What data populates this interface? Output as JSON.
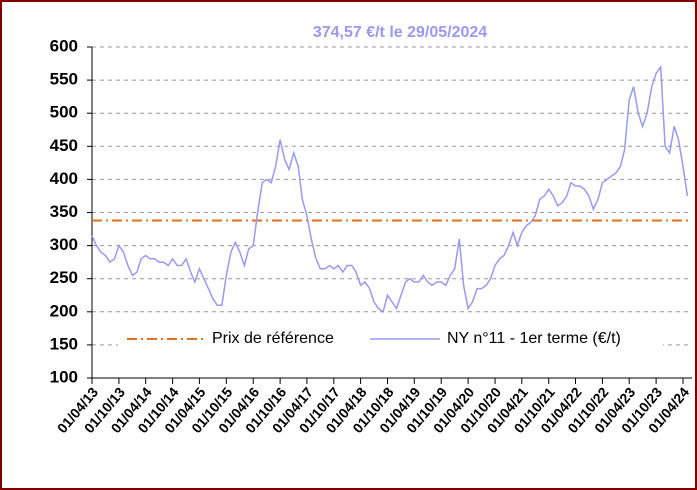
{
  "chart_data": {
    "type": "line",
    "annotation": "374,57 €/t le 29/05/2024",
    "x": [
      "01/04/13",
      "01/05/13",
      "01/06/13",
      "01/07/13",
      "01/08/13",
      "01/09/13",
      "01/10/13",
      "01/11/13",
      "01/12/13",
      "01/01/14",
      "01/02/14",
      "01/03/14",
      "01/04/14",
      "01/05/14",
      "01/06/14",
      "01/07/14",
      "01/08/14",
      "01/09/14",
      "01/10/14",
      "01/11/14",
      "01/12/14",
      "01/01/15",
      "01/02/15",
      "01/03/15",
      "01/04/15",
      "01/05/15",
      "01/06/15",
      "01/07/15",
      "01/08/15",
      "01/09/15",
      "01/10/15",
      "01/11/15",
      "01/12/15",
      "01/01/16",
      "01/02/16",
      "01/03/16",
      "01/04/16",
      "01/05/16",
      "01/06/16",
      "01/07/16",
      "01/08/16",
      "01/09/16",
      "01/10/16",
      "01/11/16",
      "01/12/16",
      "01/01/17",
      "01/02/17",
      "01/03/17",
      "01/04/17",
      "01/05/17",
      "01/06/17",
      "01/07/17",
      "01/08/17",
      "01/09/17",
      "01/10/17",
      "01/11/17",
      "01/12/17",
      "01/01/18",
      "01/02/18",
      "01/03/18",
      "01/04/18",
      "01/05/18",
      "01/06/18",
      "01/07/18",
      "01/08/18",
      "01/09/18",
      "01/10/18",
      "01/11/18",
      "01/12/18",
      "01/01/19",
      "01/02/19",
      "01/03/19",
      "01/04/19",
      "01/05/19",
      "01/06/19",
      "01/07/19",
      "01/08/19",
      "01/09/19",
      "01/10/19",
      "01/11/19",
      "01/12/19",
      "01/01/20",
      "01/02/20",
      "01/03/20",
      "01/04/20",
      "01/05/20",
      "01/06/20",
      "01/07/20",
      "01/08/20",
      "01/09/20",
      "01/10/20",
      "01/11/20",
      "01/12/20",
      "01/01/21",
      "01/02/21",
      "01/03/21",
      "01/04/21",
      "01/05/21",
      "01/06/21",
      "01/07/21",
      "01/08/21",
      "01/09/21",
      "01/10/21",
      "01/11/21",
      "01/12/21",
      "01/01/22",
      "01/02/22",
      "01/03/22",
      "01/04/22",
      "01/05/22",
      "01/06/22",
      "01/07/22",
      "01/08/22",
      "01/09/22",
      "01/10/22",
      "01/11/22",
      "01/12/22",
      "01/01/23",
      "01/02/23",
      "01/03/23",
      "01/04/23",
      "01/05/23",
      "01/06/23",
      "01/07/23",
      "01/08/23",
      "01/09/23",
      "01/10/23",
      "01/11/23",
      "01/12/23",
      "01/01/24",
      "01/02/24",
      "01/03/24",
      "01/04/24",
      "01/05/24"
    ],
    "series": [
      {
        "name": "NY n°11 - 1er terme (€/t)",
        "color": "#9999ee",
        "values": [
          315,
          300,
          290,
          285,
          275,
          280,
          300,
          290,
          270,
          255,
          260,
          280,
          285,
          280,
          280,
          275,
          275,
          270,
          280,
          270,
          270,
          280,
          260,
          245,
          265,
          250,
          235,
          220,
          210,
          210,
          255,
          290,
          305,
          290,
          270,
          295,
          300,
          350,
          395,
          400,
          395,
          420,
          460,
          430,
          415,
          440,
          420,
          370,
          345,
          310,
          280,
          265,
          265,
          270,
          265,
          270,
          260,
          270,
          270,
          260,
          240,
          245,
          235,
          215,
          205,
          200,
          225,
          215,
          205,
          225,
          245,
          250,
          245,
          245,
          255,
          245,
          240,
          245,
          245,
          240,
          255,
          265,
          310,
          240,
          205,
          215,
          235,
          235,
          240,
          250,
          270,
          280,
          285,
          300,
          320,
          300,
          320,
          330,
          335,
          345,
          370,
          375,
          385,
          375,
          360,
          365,
          375,
          395,
          390,
          390,
          385,
          375,
          355,
          370,
          395,
          400,
          405,
          410,
          420,
          445,
          520,
          540,
          500,
          480,
          500,
          540,
          560,
          570,
          450,
          440,
          480,
          460,
          420,
          375
        ]
      }
    ],
    "reference": {
      "name": "Prix de référence",
      "value": 338,
      "color": "#e07020"
    },
    "xlim": [
      "01/04/13",
      "01/06/24"
    ],
    "xticks": [
      "01/04/13",
      "01/10/13",
      "01/04/14",
      "01/10/14",
      "01/04/15",
      "01/10/15",
      "01/04/16",
      "01/10/16",
      "01/04/17",
      "01/10/17",
      "01/04/18",
      "01/10/18",
      "01/04/19",
      "01/10/19",
      "01/04/20",
      "01/10/20",
      "01/04/21",
      "01/10/21",
      "01/04/22",
      "01/10/22",
      "01/04/23",
      "01/10/23",
      "01/04/24"
    ],
    "ylim": [
      100,
      600
    ],
    "yticks": [
      100,
      150,
      200,
      250,
      300,
      350,
      400,
      450,
      500,
      550,
      600
    ],
    "grid": true
  }
}
